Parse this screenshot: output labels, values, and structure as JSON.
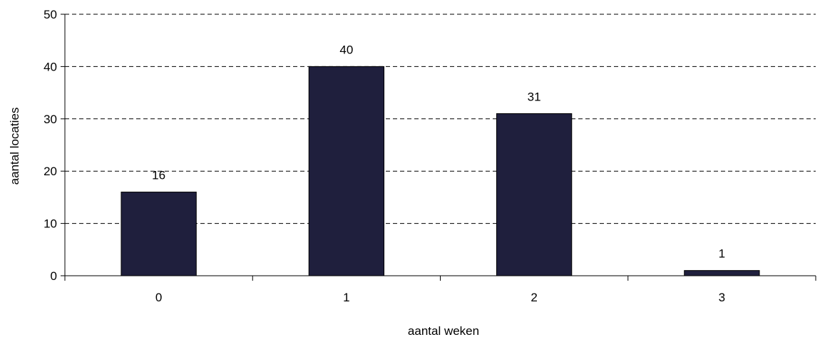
{
  "chart_data": {
    "type": "bar",
    "categories": [
      "0",
      "1",
      "2",
      "3"
    ],
    "values": [
      16,
      40,
      31,
      1
    ],
    "data_labels": [
      "16",
      "40",
      "31",
      "1"
    ],
    "xlabel": "aantal weken",
    "ylabel": "aantal locaties",
    "ylim": [
      0,
      50
    ],
    "yticks": [
      0,
      10,
      20,
      30,
      40,
      50
    ],
    "grid": "horizontal-dashed",
    "legend": "none",
    "colors": {
      "bar_fill": "#1f1f3d",
      "bar_stroke": "#000000",
      "grid": "#000000",
      "axis": "#000000"
    }
  }
}
